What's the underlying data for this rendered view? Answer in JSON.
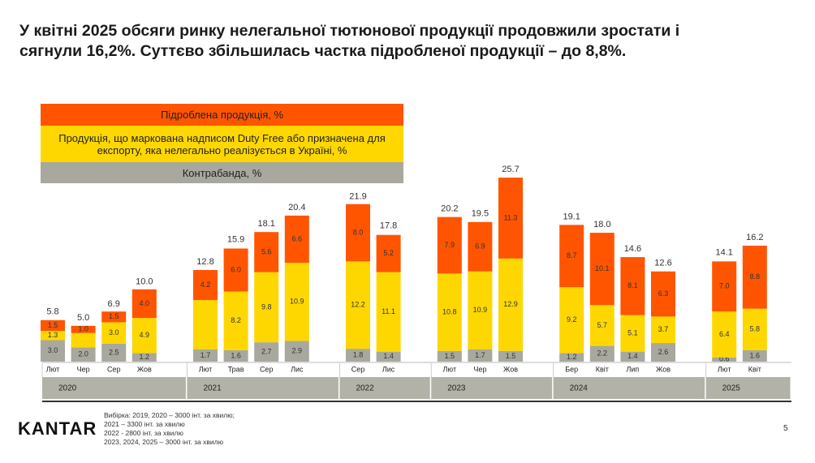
{
  "title": [
    "У квітні 2025 обсяги ринку нелегальної тютюнової продукції продовжили зростати і",
    "сягнули 16,2%. Суттєво збільшилась частка підробленої продукції – до 8,8%."
  ],
  "chart_data": {
    "type": "stacked-bar",
    "categories": [
      "Лют",
      "Чер",
      "Сер",
      "Жов",
      null,
      "Лют",
      "Трав",
      "Сер",
      "Лис",
      null,
      "Сер",
      "Лис",
      null,
      "Лют",
      "Чер",
      "Жов",
      null,
      "Бер",
      "Квіт",
      "Лип",
      "Жов",
      null,
      "Лют",
      "Квіт"
    ],
    "years": [
      "2020",
      "2021",
      "2022",
      "2023",
      "2024",
      "2025"
    ],
    "series": [
      {
        "name": "Контрабанда, %",
        "color": "#a8a89e",
        "values": [
          3.0,
          2.0,
          2.5,
          1.2,
          null,
          1.7,
          1.6,
          2.7,
          2.9,
          null,
          1.8,
          1.4,
          null,
          1.5,
          1.7,
          1.5,
          null,
          1.2,
          2.2,
          1.4,
          2.6,
          null,
          0.6,
          1.6
        ],
        "value_labels": [
          "3.0",
          "2.0",
          "2.5",
          "1.2",
          null,
          "1.7",
          "1.6",
          "2.7",
          "2.9",
          null,
          "1.8",
          "1.4",
          null,
          "1.5",
          "1.7",
          "1.5",
          null,
          "1.2",
          "2.2",
          "1.4",
          "2.6",
          null,
          "0.6",
          "1.6"
        ]
      },
      {
        "name": "Продукція, що маркована надписом Duty Free або призначена для експорту, яка нелегально реалізується в Україні, %",
        "color": "#ffd700",
        "values": [
          1.3,
          2.0,
          3.0,
          4.9,
          null,
          6.9,
          8.2,
          9.8,
          10.9,
          null,
          12.2,
          11.1,
          null,
          10.8,
          10.9,
          12.9,
          null,
          9.2,
          5.7,
          5.1,
          3.7,
          null,
          6.4,
          5.8
        ],
        "value_labels": [
          "1.3",
          null,
          "3.0",
          "4.9",
          null,
          null,
          "8.2",
          "9.8",
          "10.9",
          null,
          "12.2",
          "11.1",
          null,
          "10.8",
          "10.9",
          "12.9",
          null,
          "9.2",
          "5.7",
          "5.1",
          "3.7",
          null,
          "6.4",
          "5.8"
        ]
      },
      {
        "name": "Підроблена продукція, %",
        "color": "#ff5500",
        "values": [
          1.5,
          1.0,
          1.5,
          4.0,
          null,
          4.2,
          6.0,
          5.6,
          6.6,
          null,
          8.0,
          5.2,
          null,
          7.9,
          6.9,
          11.3,
          null,
          8.7,
          10.1,
          8.1,
          6.3,
          null,
          7.0,
          8.8
        ],
        "value_labels": [
          "1.5",
          "1.0",
          "1.5",
          "4.0",
          null,
          "4.2",
          "6.0",
          "5.6",
          "6.6",
          null,
          "8.0",
          "5.2",
          null,
          "7.9",
          "6.9",
          "11.3",
          null,
          "8.7",
          "10.1",
          "8.1",
          "6.3",
          null,
          "7.0",
          "8.8"
        ]
      }
    ],
    "totals": [
      5.8,
      5.0,
      6.9,
      10.0,
      null,
      12.8,
      15.9,
      18.1,
      20.4,
      null,
      21.9,
      17.8,
      null,
      20.2,
      19.5,
      25.7,
      null,
      19.1,
      18.0,
      14.6,
      12.6,
      null,
      14.1,
      16.2
    ],
    "total_labels": [
      "5.8",
      "5.0",
      "6.9",
      "10.0",
      null,
      "12.8",
      "15.9",
      "18.1",
      "20.4",
      null,
      "21.9",
      "17.8",
      null,
      "20.2",
      "19.5",
      "25.7",
      null,
      "19.1",
      "18.0",
      "14.6",
      "12.6",
      null,
      "14.1",
      "16.2"
    ]
  },
  "footer": {
    "logo": "KANTAR",
    "notes": [
      "Вибірка: 2019, 2020 – 3000 інт. за хвилю;",
      "2021 – 3300 інт. за хвилю",
      "2022 -  2800 інт. за хвилю",
      "2023, 2024, 2025 – 3000 інт. за хвилю"
    ],
    "page": "5"
  }
}
